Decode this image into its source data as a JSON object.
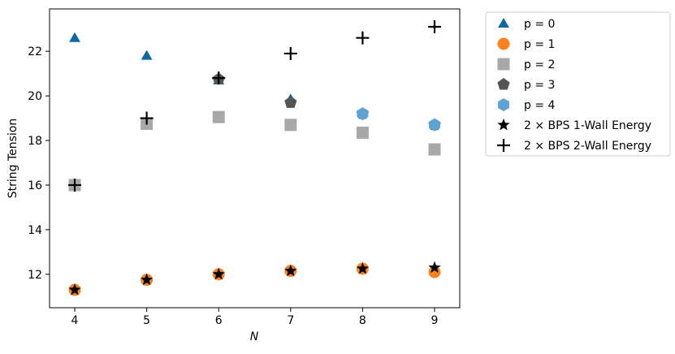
{
  "chart_data": {
    "type": "scatter",
    "xlabel": "N",
    "ylabel": "String Tension",
    "xlim": [
      3.65,
      9.35
    ],
    "ylim": [
      10.5,
      23.9
    ],
    "x_ticks": [
      4,
      5,
      6,
      7,
      8,
      9
    ],
    "y_ticks": [
      12,
      14,
      16,
      18,
      20,
      22
    ],
    "grid": false,
    "legend_position": "outside-right",
    "series": [
      {
        "name": "p = 0",
        "marker": "triangle",
        "color": "#0b6aa2",
        "points": [
          [
            4,
            22.6
          ],
          [
            5,
            21.8
          ],
          [
            6,
            20.7
          ],
          [
            7,
            19.85
          ],
          [
            8,
            19.25
          ],
          [
            9,
            18.75
          ]
        ]
      },
      {
        "name": "p = 1",
        "marker": "circle",
        "color": "#fb8120",
        "points": [
          [
            4,
            11.3
          ],
          [
            5,
            11.75
          ],
          [
            6,
            12.0
          ],
          [
            7,
            12.15
          ],
          [
            8,
            12.25
          ],
          [
            9,
            12.1
          ]
        ]
      },
      {
        "name": "p = 2",
        "marker": "square",
        "color": "#a8a8a8",
        "points": [
          [
            4,
            16.0
          ],
          [
            5,
            18.75
          ],
          [
            6,
            19.05
          ],
          [
            7,
            18.7
          ],
          [
            8,
            18.35
          ],
          [
            9,
            17.6
          ]
        ]
      },
      {
        "name": "p = 3",
        "marker": "pentagon",
        "color": "#555555",
        "points": [
          [
            6,
            20.75
          ],
          [
            7,
            19.7
          ],
          [
            8,
            19.2
          ],
          [
            9,
            18.7
          ]
        ]
      },
      {
        "name": "p = 4",
        "marker": "hexagon",
        "color": "#5ea3d6",
        "points": [
          [
            8,
            19.2
          ],
          [
            9,
            18.7
          ]
        ]
      },
      {
        "name": "2 × BPS 1-Wall Energy",
        "marker": "star",
        "color": "#000000",
        "points": [
          [
            4,
            11.3
          ],
          [
            5,
            11.75
          ],
          [
            6,
            12.0
          ],
          [
            7,
            12.15
          ],
          [
            8,
            12.25
          ],
          [
            9,
            12.3
          ]
        ]
      },
      {
        "name": "2 × BPS 2-Wall Energy",
        "marker": "plus",
        "color": "#000000",
        "points": [
          [
            4,
            16.0
          ],
          [
            5,
            19.0
          ],
          [
            6,
            20.8
          ],
          [
            7,
            21.9
          ],
          [
            8,
            22.6
          ],
          [
            9,
            23.1
          ]
        ]
      }
    ]
  }
}
